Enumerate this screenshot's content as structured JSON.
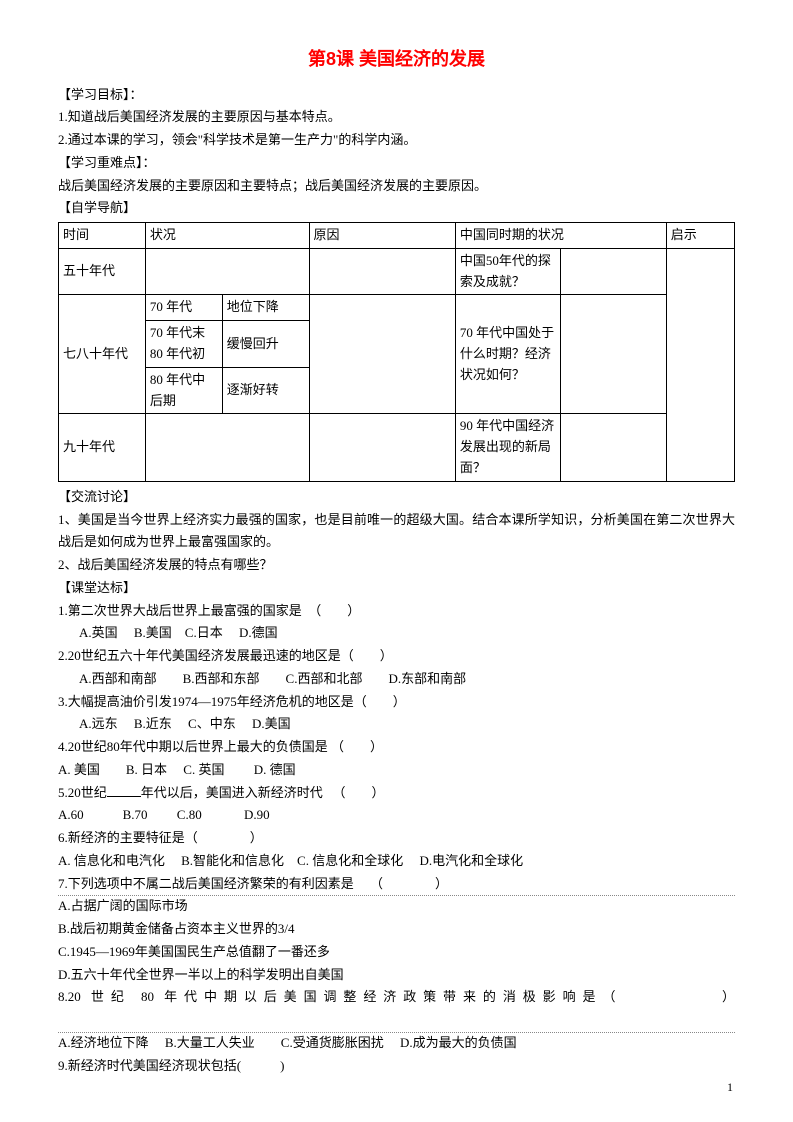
{
  "title": "第8课 美国经济的发展",
  "sections": {
    "goals_label": "【学习目标】：",
    "goals": [
      "1.知道战后美国经济发展的主要原因与基本特点。",
      "2.通过本课的学习，领会\"科学技术是第一生产力\"的科学内涵。"
    ],
    "difficulty_label": "【学习重难点】：",
    "difficulty_text": "战后美国经济发展的主要原因和主要特点；战后美国经济发展的主要原因。",
    "selfstudy_label": "【自学导航】"
  },
  "table": {
    "headers": {
      "time": "时间",
      "status": "状况",
      "reason": "原因",
      "china": "中国同时期的状况",
      "qishi": "启示"
    },
    "row50": {
      "time": "五十年代",
      "china": "中国50年代的探索及成就？"
    },
    "row7080": {
      "time": "七八十年代",
      "sub": [
        {
          "period": "70 年代",
          "status": "地位下降"
        },
        {
          "period": "70 年代末 80 年代初",
          "status": "缓慢回升"
        },
        {
          "period": "80 年代中后期",
          "status": "逐渐好转"
        }
      ],
      "china": "70 年代中国处于什么时期？经济状况如何？"
    },
    "row90": {
      "time": "九十年代",
      "china": "90 年代中国经济发展出现的新局面？"
    }
  },
  "discussion": {
    "label": "【交流讨论】",
    "items": [
      "1、美国是当今世界上经济实力最强的国家，也是目前唯一的超级大国。结合本课所学知识，分析美国在第二次世界大战后是如何成为世界上最富强国家的。",
      "2、战后美国经济发展的特点有哪些？"
    ]
  },
  "quiz": {
    "label": "【课堂达标】",
    "q1": {
      "stem": "1.第二次世界大战后世界上最富强的国家是　（　　）",
      "opts": "　A.英国　 B.美国　C.日本　 D.德国"
    },
    "q2": {
      "stem": "2.20世纪五六十年代美国经济发展最迅速的地区是（　　）",
      "opts": "　A.西部和南部　　B.西部和东部　　C.西部和北部　　D.东部和南部"
    },
    "q3": {
      "stem": "3.大幅提高油价引发1974—1975年经济危机的地区是（　　）",
      "opts": "　A.远东　 B.近东　 C、中东　 D.美国"
    },
    "q4": {
      "stem": "4.20世纪80年代中期以后世界上最大的负债国是 （　　）",
      "opts": "A. 美国　　B. 日本　 C. 英国　　 D. 德国"
    },
    "q5": {
      "stem_a": "5.20世纪",
      "stem_b": "年代以后，美国进入新经济时代 　（　　）",
      "opts": "A.60　　　B.70 　　C.80 　　　D.90"
    },
    "q6": {
      "stem": "6.新经济的主要特征是（　　　　）",
      "opts": "A. 信息化和电汽化　 B.智能化和信息化　C. 信息化和全球化　 D.电汽化和全球化"
    },
    "q7": {
      "stem": "7.下列选项中不属二战后美国经济繁荣的有利因素是　 （　　　　）",
      "opts": [
        "A.占据广阔的国际市场",
        "B.战后初期黄金储备占资本主义世界的3/4",
        "C.1945—1969年美国国民生产总值翻了一番还多",
        "D.五六十年代全世界一半以上的科学发明出自美国"
      ]
    },
    "q8": {
      "stem": "8.20 世纪 80 年代中期以后美国调整经济政策带来的消极影响是（　　　　　）",
      "opts": "A.经济地位下降　 B.大量工人失业　　C.受通货膨胀困扰　 D.成为最大的负债国"
    },
    "q9": {
      "stem": "9.新经济时代美国经济现状包括(　　　)"
    }
  },
  "page_number": "1"
}
